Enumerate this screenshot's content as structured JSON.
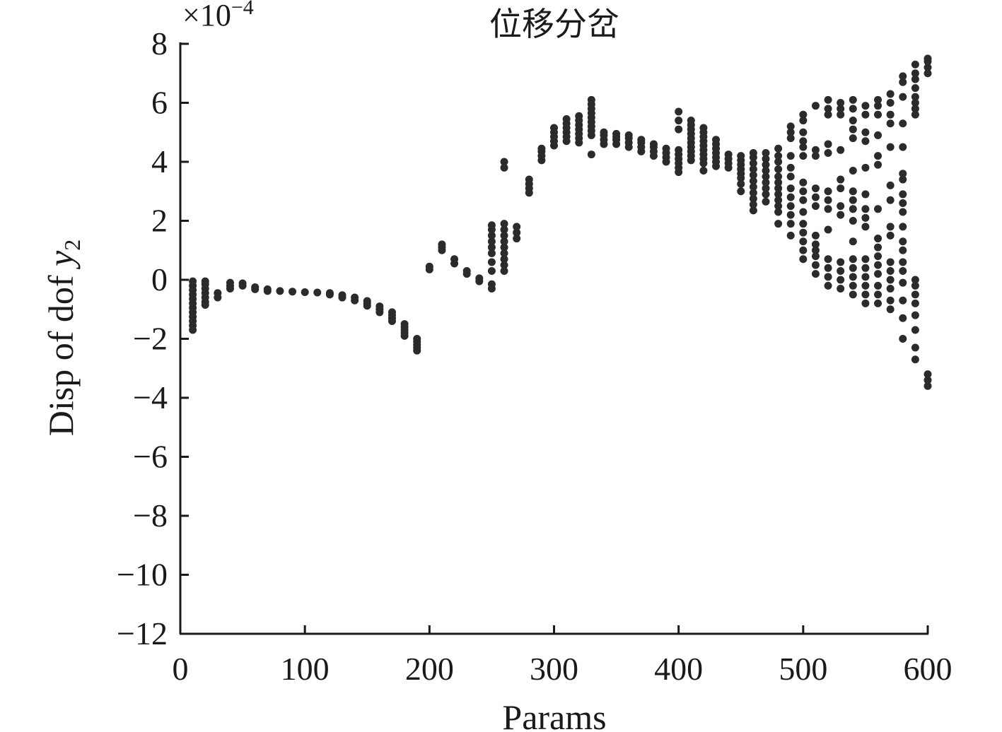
{
  "chart_data": {
    "type": "scatter",
    "title": "位移分岔",
    "xlabel": "Params",
    "ylabel_main": "Disp of dof ",
    "ylabel_var": "y",
    "ylabel_sub": "2",
    "y_multiplier_prefix": "×10",
    "y_multiplier_exponent": "−4",
    "xlim": [
      0,
      600
    ],
    "ylim": [
      -12,
      8
    ],
    "x_ticks": [
      0,
      100,
      200,
      300,
      400,
      500,
      600
    ],
    "y_ticks": [
      8,
      6,
      4,
      2,
      0,
      -2,
      -4,
      -6,
      -8,
      -10,
      -12
    ],
    "x_tick_labels": [
      "0",
      "100",
      "200",
      "300",
      "400",
      "500",
      "600"
    ],
    "y_tick_labels": [
      "8",
      "6",
      "4",
      "2",
      "0",
      "−2",
      "−4",
      "−6",
      "−8",
      "−10",
      "−12"
    ],
    "marker_color": "#2b2b2b",
    "grid": false,
    "columns": [
      {
        "x": 10,
        "y": [
          -0.05,
          -0.2,
          -0.35,
          -0.5,
          -0.65,
          -0.8,
          -0.95,
          -1.1,
          -1.25,
          -1.4,
          -1.55,
          -1.7
        ]
      },
      {
        "x": 20,
        "y": [
          -0.05,
          -0.15,
          -0.3,
          -0.45,
          -0.6,
          -0.75,
          -0.85
        ]
      },
      {
        "x": 30,
        "y": [
          -0.45,
          -0.6
        ]
      },
      {
        "x": 40,
        "y": [
          -0.1,
          -0.2,
          -0.3
        ]
      },
      {
        "x": 50,
        "y": [
          -0.12,
          -0.2
        ]
      },
      {
        "x": 60,
        "y": [
          -0.25,
          -0.32
        ]
      },
      {
        "x": 70,
        "y": [
          -0.32,
          -0.38
        ]
      },
      {
        "x": 80,
        "y": [
          -0.38
        ]
      },
      {
        "x": 90,
        "y": [
          -0.4
        ]
      },
      {
        "x": 100,
        "y": [
          -0.42
        ]
      },
      {
        "x": 110,
        "y": [
          -0.43
        ]
      },
      {
        "x": 120,
        "y": [
          -0.45,
          -0.5
        ]
      },
      {
        "x": 130,
        "y": [
          -0.52,
          -0.6
        ]
      },
      {
        "x": 140,
        "y": [
          -0.6,
          -0.7
        ]
      },
      {
        "x": 150,
        "y": [
          -0.72,
          -0.8,
          -0.88
        ]
      },
      {
        "x": 160,
        "y": [
          -0.9,
          -1.0,
          -1.1
        ]
      },
      {
        "x": 170,
        "y": [
          -1.1,
          -1.2,
          -1.3,
          -1.4
        ]
      },
      {
        "x": 180,
        "y": [
          -1.5,
          -1.6,
          -1.7,
          -1.8,
          -1.9
        ]
      },
      {
        "x": 190,
        "y": [
          -2.0,
          -2.1,
          -2.2,
          -2.3,
          -2.4
        ]
      },
      {
        "x": 200,
        "y": [
          0.35,
          0.45
        ]
      },
      {
        "x": 210,
        "y": [
          1.0,
          1.1,
          1.2
        ]
      },
      {
        "x": 220,
        "y": [
          0.55,
          0.7
        ]
      },
      {
        "x": 230,
        "y": [
          0.2,
          0.3
        ]
      },
      {
        "x": 240,
        "y": [
          -0.05,
          0.05
        ]
      },
      {
        "x": 250,
        "y": [
          -0.3,
          -0.15,
          0.3,
          0.6,
          0.9,
          1.1,
          1.3,
          1.5,
          1.7,
          1.85
        ]
      },
      {
        "x": 260,
        "y": [
          0.3,
          0.5,
          0.7,
          0.9,
          1.1,
          1.3,
          1.5,
          1.7,
          1.9,
          3.8,
          4.0
        ]
      },
      {
        "x": 270,
        "y": [
          1.4,
          1.6,
          1.8
        ]
      },
      {
        "x": 280,
        "y": [
          2.95,
          3.1,
          3.25,
          3.4
        ]
      },
      {
        "x": 290,
        "y": [
          4.05,
          4.2,
          4.35,
          4.45
        ]
      },
      {
        "x": 300,
        "y": [
          4.55,
          4.7,
          4.85,
          5.0,
          5.15
        ]
      },
      {
        "x": 310,
        "y": [
          4.7,
          4.85,
          5.0,
          5.15,
          5.3,
          5.45
        ]
      },
      {
        "x": 320,
        "y": [
          4.65,
          4.8,
          4.95,
          5.1,
          5.25,
          5.4,
          5.55
        ]
      },
      {
        "x": 330,
        "y": [
          4.25,
          4.9,
          5.05,
          5.2,
          5.35,
          5.5,
          5.65,
          5.8,
          5.95,
          6.1
        ]
      },
      {
        "x": 340,
        "y": [
          4.6,
          4.75,
          4.9,
          5.0
        ]
      },
      {
        "x": 350,
        "y": [
          4.6,
          4.75,
          4.85,
          4.95
        ]
      },
      {
        "x": 360,
        "y": [
          4.5,
          4.65,
          4.8,
          4.9
        ]
      },
      {
        "x": 370,
        "y": [
          4.35,
          4.5,
          4.65,
          4.75
        ]
      },
      {
        "x": 380,
        "y": [
          4.2,
          4.35,
          4.5,
          4.6
        ]
      },
      {
        "x": 390,
        "y": [
          4.0,
          4.15,
          4.3,
          4.45
        ]
      },
      {
        "x": 400,
        "y": [
          3.65,
          3.8,
          3.95,
          4.1,
          4.25,
          4.4,
          5.1,
          5.4,
          5.7
        ]
      },
      {
        "x": 410,
        "y": [
          4.05,
          4.2,
          4.35,
          4.5,
          4.65,
          4.8,
          4.95,
          5.1,
          5.25,
          5.4
        ]
      },
      {
        "x": 420,
        "y": [
          3.7,
          3.95,
          4.1,
          4.25,
          4.4,
          4.55,
          4.7,
          4.85,
          5.0,
          5.15
        ]
      },
      {
        "x": 430,
        "y": [
          3.85,
          4.0,
          4.15,
          4.3,
          4.45,
          4.6,
          4.75
        ]
      },
      {
        "x": 440,
        "y": [
          3.8,
          3.95,
          4.1,
          4.25
        ]
      },
      {
        "x": 450,
        "y": [
          3.0,
          3.25,
          3.45,
          3.6,
          3.75,
          3.9,
          4.05,
          4.2
        ]
      },
      {
        "x": 460,
        "y": [
          2.35,
          2.55,
          2.75,
          2.95,
          3.15,
          3.35,
          3.55,
          3.75,
          3.95,
          4.15,
          4.3
        ]
      },
      {
        "x": 470,
        "y": [
          2.65,
          2.9,
          3.1,
          3.3,
          3.5,
          3.7,
          3.9,
          4.1,
          4.3
        ]
      },
      {
        "x": 480,
        "y": [
          1.9,
          2.3,
          2.5,
          2.7,
          2.9,
          3.1,
          3.3,
          3.5,
          3.75,
          4.0,
          4.2,
          4.45
        ]
      },
      {
        "x": 490,
        "y": [
          1.5,
          1.9,
          2.2,
          2.5,
          2.8,
          3.1,
          3.5,
          3.8,
          4.2,
          4.8,
          5.0,
          5.2
        ]
      },
      {
        "x": 500,
        "y": [
          0.7,
          1.0,
          1.3,
          1.6,
          1.9,
          2.3,
          2.7,
          3.0,
          3.3,
          4.2,
          4.5,
          4.7,
          5.0,
          5.4,
          5.6
        ]
      },
      {
        "x": 510,
        "y": [
          0.2,
          0.5,
          0.8,
          1.0,
          1.2,
          1.5,
          2.5,
          2.8,
          3.1,
          4.2,
          4.4,
          5.9
        ]
      },
      {
        "x": 520,
        "y": [
          -0.2,
          0.1,
          0.4,
          0.7,
          1.7,
          2.4,
          2.7,
          3.0,
          4.3,
          4.6,
          5.6,
          5.8,
          6.1
        ]
      },
      {
        "x": 530,
        "y": [
          -0.3,
          0.0,
          0.3,
          0.6,
          2.2,
          2.5,
          3.1,
          3.4,
          4.4,
          5.6,
          5.8,
          6.0
        ]
      },
      {
        "x": 540,
        "y": [
          -0.5,
          -0.2,
          0.1,
          0.4,
          0.7,
          1.3,
          2.0,
          2.4,
          2.7,
          3.0,
          3.7,
          4.8,
          5.1,
          5.4,
          5.8,
          6.1
        ]
      },
      {
        "x": 550,
        "y": [
          -0.8,
          -0.5,
          -0.2,
          0.1,
          0.4,
          0.7,
          1.8,
          2.1,
          2.4,
          2.9,
          3.8,
          4.7,
          5.0,
          5.6,
          5.9
        ]
      },
      {
        "x": 560,
        "y": [
          -0.8,
          -0.5,
          -0.2,
          0.2,
          0.5,
          0.8,
          1.1,
          1.4,
          2.4,
          3.9,
          4.2,
          4.9,
          5.6,
          5.9,
          6.1
        ]
      },
      {
        "x": 570,
        "y": [
          -1.0,
          -0.7,
          -0.3,
          0.0,
          0.3,
          0.6,
          1.5,
          1.8,
          2.7,
          3.2,
          4.5,
          5.3,
          5.6,
          6.0,
          6.3
        ]
      },
      {
        "x": 580,
        "y": [
          -2.0,
          -1.3,
          -0.7,
          -0.1,
          0.3,
          0.6,
          1.0,
          1.3,
          1.8,
          2.3,
          2.6,
          2.9,
          3.4,
          3.6,
          4.5,
          5.3,
          6.2,
          6.7,
          6.9
        ]
      },
      {
        "x": 590,
        "y": [
          -2.7,
          -2.3,
          -1.7,
          -1.2,
          -0.8,
          -0.5,
          -0.2,
          0.0,
          5.6,
          5.8,
          6.0,
          6.2,
          6.5,
          6.8,
          7.0,
          7.3
        ]
      },
      {
        "x": 600,
        "y": [
          -3.6,
          -3.4,
          -3.2,
          7.0,
          7.2,
          7.4,
          7.5
        ]
      }
    ]
  }
}
